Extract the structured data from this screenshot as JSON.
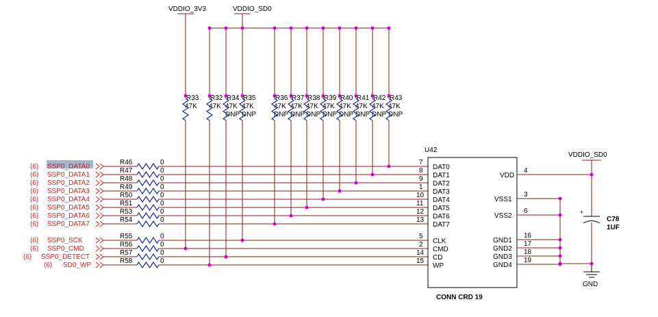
{
  "rails": {
    "left": "VDDIO_3V3",
    "right": "VDDIO_SD0",
    "vdd_net": "VDDIO_SD0",
    "gnd": "GND"
  },
  "pullups": [
    {
      "ref": "R33",
      "value": "47K",
      "note": ""
    },
    {
      "ref": "R32",
      "value": "47K",
      "note": ""
    },
    {
      "ref": "R34",
      "value": "47K",
      "note": "DNP"
    },
    {
      "ref": "R35",
      "value": "47K",
      "note": "DNP"
    },
    {
      "ref": "R36",
      "value": "47K",
      "note": "DNP"
    },
    {
      "ref": "R37",
      "value": "47K",
      "note": "DNP"
    },
    {
      "ref": "R38",
      "value": "47K",
      "note": "DNP"
    },
    {
      "ref": "R39",
      "value": "47K",
      "note": "DNP"
    },
    {
      "ref": "R40",
      "value": "47K",
      "note": "DNP"
    },
    {
      "ref": "R41",
      "value": "47K",
      "note": "DNP"
    },
    {
      "ref": "R42",
      "value": "47K",
      "note": "DNP"
    },
    {
      "ref": "R43",
      "value": "47K",
      "note": "DNP"
    }
  ],
  "signals": [
    {
      "sheet": "(6)",
      "name": "SSP0_DATA0",
      "res": "R46",
      "value": "0",
      "pin": "7",
      "pin_name": "DAT0"
    },
    {
      "sheet": "(6)",
      "name": "SSP0_DATA1",
      "res": "R47",
      "value": "0",
      "pin": "8",
      "pin_name": "DAT1"
    },
    {
      "sheet": "(6)",
      "name": "SSP0_DATA2",
      "res": "R48",
      "value": "0",
      "pin": "9",
      "pin_name": "DAT2"
    },
    {
      "sheet": "(6)",
      "name": "SSP0_DATA3",
      "res": "R49",
      "value": "0",
      "pin": "1",
      "pin_name": "DAT3"
    },
    {
      "sheet": "(6)",
      "name": "SSP0_DATA4",
      "res": "R50",
      "value": "0",
      "pin": "10",
      "pin_name": "DAT4"
    },
    {
      "sheet": "(6)",
      "name": "SSP0_DATA5",
      "res": "R51",
      "value": "0",
      "pin": "11",
      "pin_name": "DAT5"
    },
    {
      "sheet": "(6)",
      "name": "SSP0_DATA6",
      "res": "R53",
      "value": "0",
      "pin": "12",
      "pin_name": "DAT6"
    },
    {
      "sheet": "(6)",
      "name": "SSP0_DATA7",
      "res": "R54",
      "value": "0",
      "pin": "13",
      "pin_name": "DAT7"
    },
    {
      "sheet": "(6)",
      "name": "SSP0_SCK",
      "res": "R55",
      "value": "0",
      "pin": "5",
      "pin_name": "CLK"
    },
    {
      "sheet": "(6)",
      "name": "SSP0_CMD",
      "res": "R56",
      "value": "0",
      "pin": "2",
      "pin_name": "CMD"
    },
    {
      "sheet": "(6)",
      "name": "SSP0_DETECT",
      "res": "R57",
      "value": "0",
      "pin": "14",
      "pin_name": "CD"
    },
    {
      "sheet": "(6)",
      "name": "SD0_WP",
      "res": "R58",
      "value": "0",
      "pin": "15",
      "pin_name": "WP"
    }
  ],
  "connector": {
    "ref": "U42",
    "part": "CONN CRD 19",
    "right_pins": [
      {
        "name": "VDD",
        "num": "4"
      },
      {
        "name": "VSS1",
        "num": "3"
      },
      {
        "name": "VSS2",
        "num": "6"
      },
      {
        "name": "GND1",
        "num": "16"
      },
      {
        "name": "GND2",
        "num": "17"
      },
      {
        "name": "GND3",
        "num": "18"
      },
      {
        "name": "GND4",
        "num": "19"
      }
    ]
  },
  "capacitor": {
    "ref": "C78",
    "value": "1UF"
  },
  "colors": {
    "wire": "#8b1a1a",
    "resistor": "#1a2a9a",
    "junction": "#d400d4",
    "signal_text": "#d42020",
    "highlight": "#a9b4c6"
  }
}
